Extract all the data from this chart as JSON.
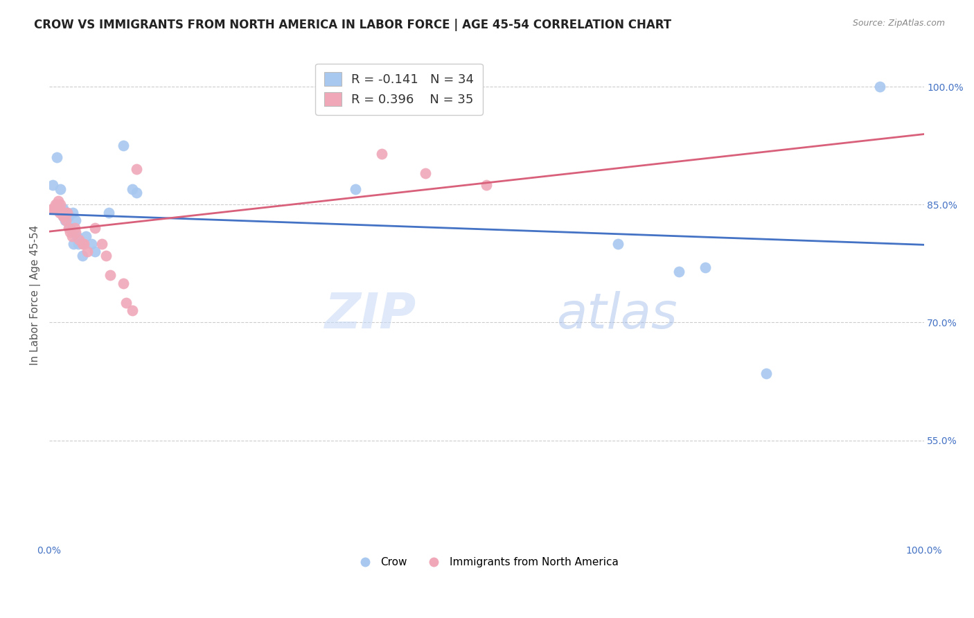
{
  "title": "CROW VS IMMIGRANTS FROM NORTH AMERICA IN LABOR FORCE | AGE 45-54 CORRELATION CHART",
  "source": "Source: ZipAtlas.com",
  "ylabel": "In Labor Force | Age 45-54",
  "xlim": [
    0.0,
    1.0
  ],
  "ylim": [
    0.42,
    1.05
  ],
  "y_tick_labels": [
    "55.0%",
    "70.0%",
    "85.0%",
    "100.0%"
  ],
  "y_ticks": [
    0.55,
    0.7,
    0.85,
    1.0
  ],
  "legend_label1": "Crow",
  "legend_label2": "Immigrants from North America",
  "R_crow": -0.141,
  "N_crow": 34,
  "R_imm": 0.396,
  "N_imm": 35,
  "crow_color": "#a8c8f0",
  "imm_color": "#f0a8b8",
  "crow_line_color": "#4472c4",
  "imm_line_color": "#d9607a",
  "background_color": "#ffffff",
  "crow_x": [
    0.004,
    0.009,
    0.013,
    0.013,
    0.014,
    0.015,
    0.016,
    0.016,
    0.017,
    0.018,
    0.019,
    0.021,
    0.022,
    0.023,
    0.024,
    0.027,
    0.028,
    0.03,
    0.032,
    0.033,
    0.038,
    0.042,
    0.048,
    0.052,
    0.068,
    0.085,
    0.095,
    0.1,
    0.35,
    0.65,
    0.72,
    0.75,
    0.82,
    0.95
  ],
  "crow_y": [
    0.875,
    0.91,
    0.87,
    0.845,
    0.845,
    0.84,
    0.845,
    0.835,
    0.84,
    0.83,
    0.84,
    0.84,
    0.835,
    0.82,
    0.82,
    0.84,
    0.8,
    0.83,
    0.81,
    0.8,
    0.785,
    0.81,
    0.8,
    0.79,
    0.84,
    0.925,
    0.87,
    0.865,
    0.87,
    0.8,
    0.765,
    0.77,
    0.635,
    1.0
  ],
  "imm_x": [
    0.004,
    0.005,
    0.007,
    0.009,
    0.01,
    0.011,
    0.012,
    0.012,
    0.013,
    0.014,
    0.016,
    0.017,
    0.018,
    0.019,
    0.021,
    0.022,
    0.024,
    0.026,
    0.029,
    0.03,
    0.034,
    0.038,
    0.04,
    0.044,
    0.052,
    0.06,
    0.065,
    0.07,
    0.085,
    0.088,
    0.095,
    0.1,
    0.38,
    0.43,
    0.5
  ],
  "imm_y": [
    0.845,
    0.845,
    0.85,
    0.85,
    0.855,
    0.845,
    0.845,
    0.84,
    0.85,
    0.84,
    0.835,
    0.835,
    0.84,
    0.83,
    0.84,
    0.82,
    0.815,
    0.81,
    0.82,
    0.815,
    0.805,
    0.8,
    0.8,
    0.79,
    0.82,
    0.8,
    0.785,
    0.76,
    0.75,
    0.725,
    0.715,
    0.895,
    0.915,
    0.89,
    0.875
  ],
  "title_fontsize": 12,
  "axis_label_fontsize": 11,
  "tick_fontsize": 10,
  "legend_fontsize": 13
}
